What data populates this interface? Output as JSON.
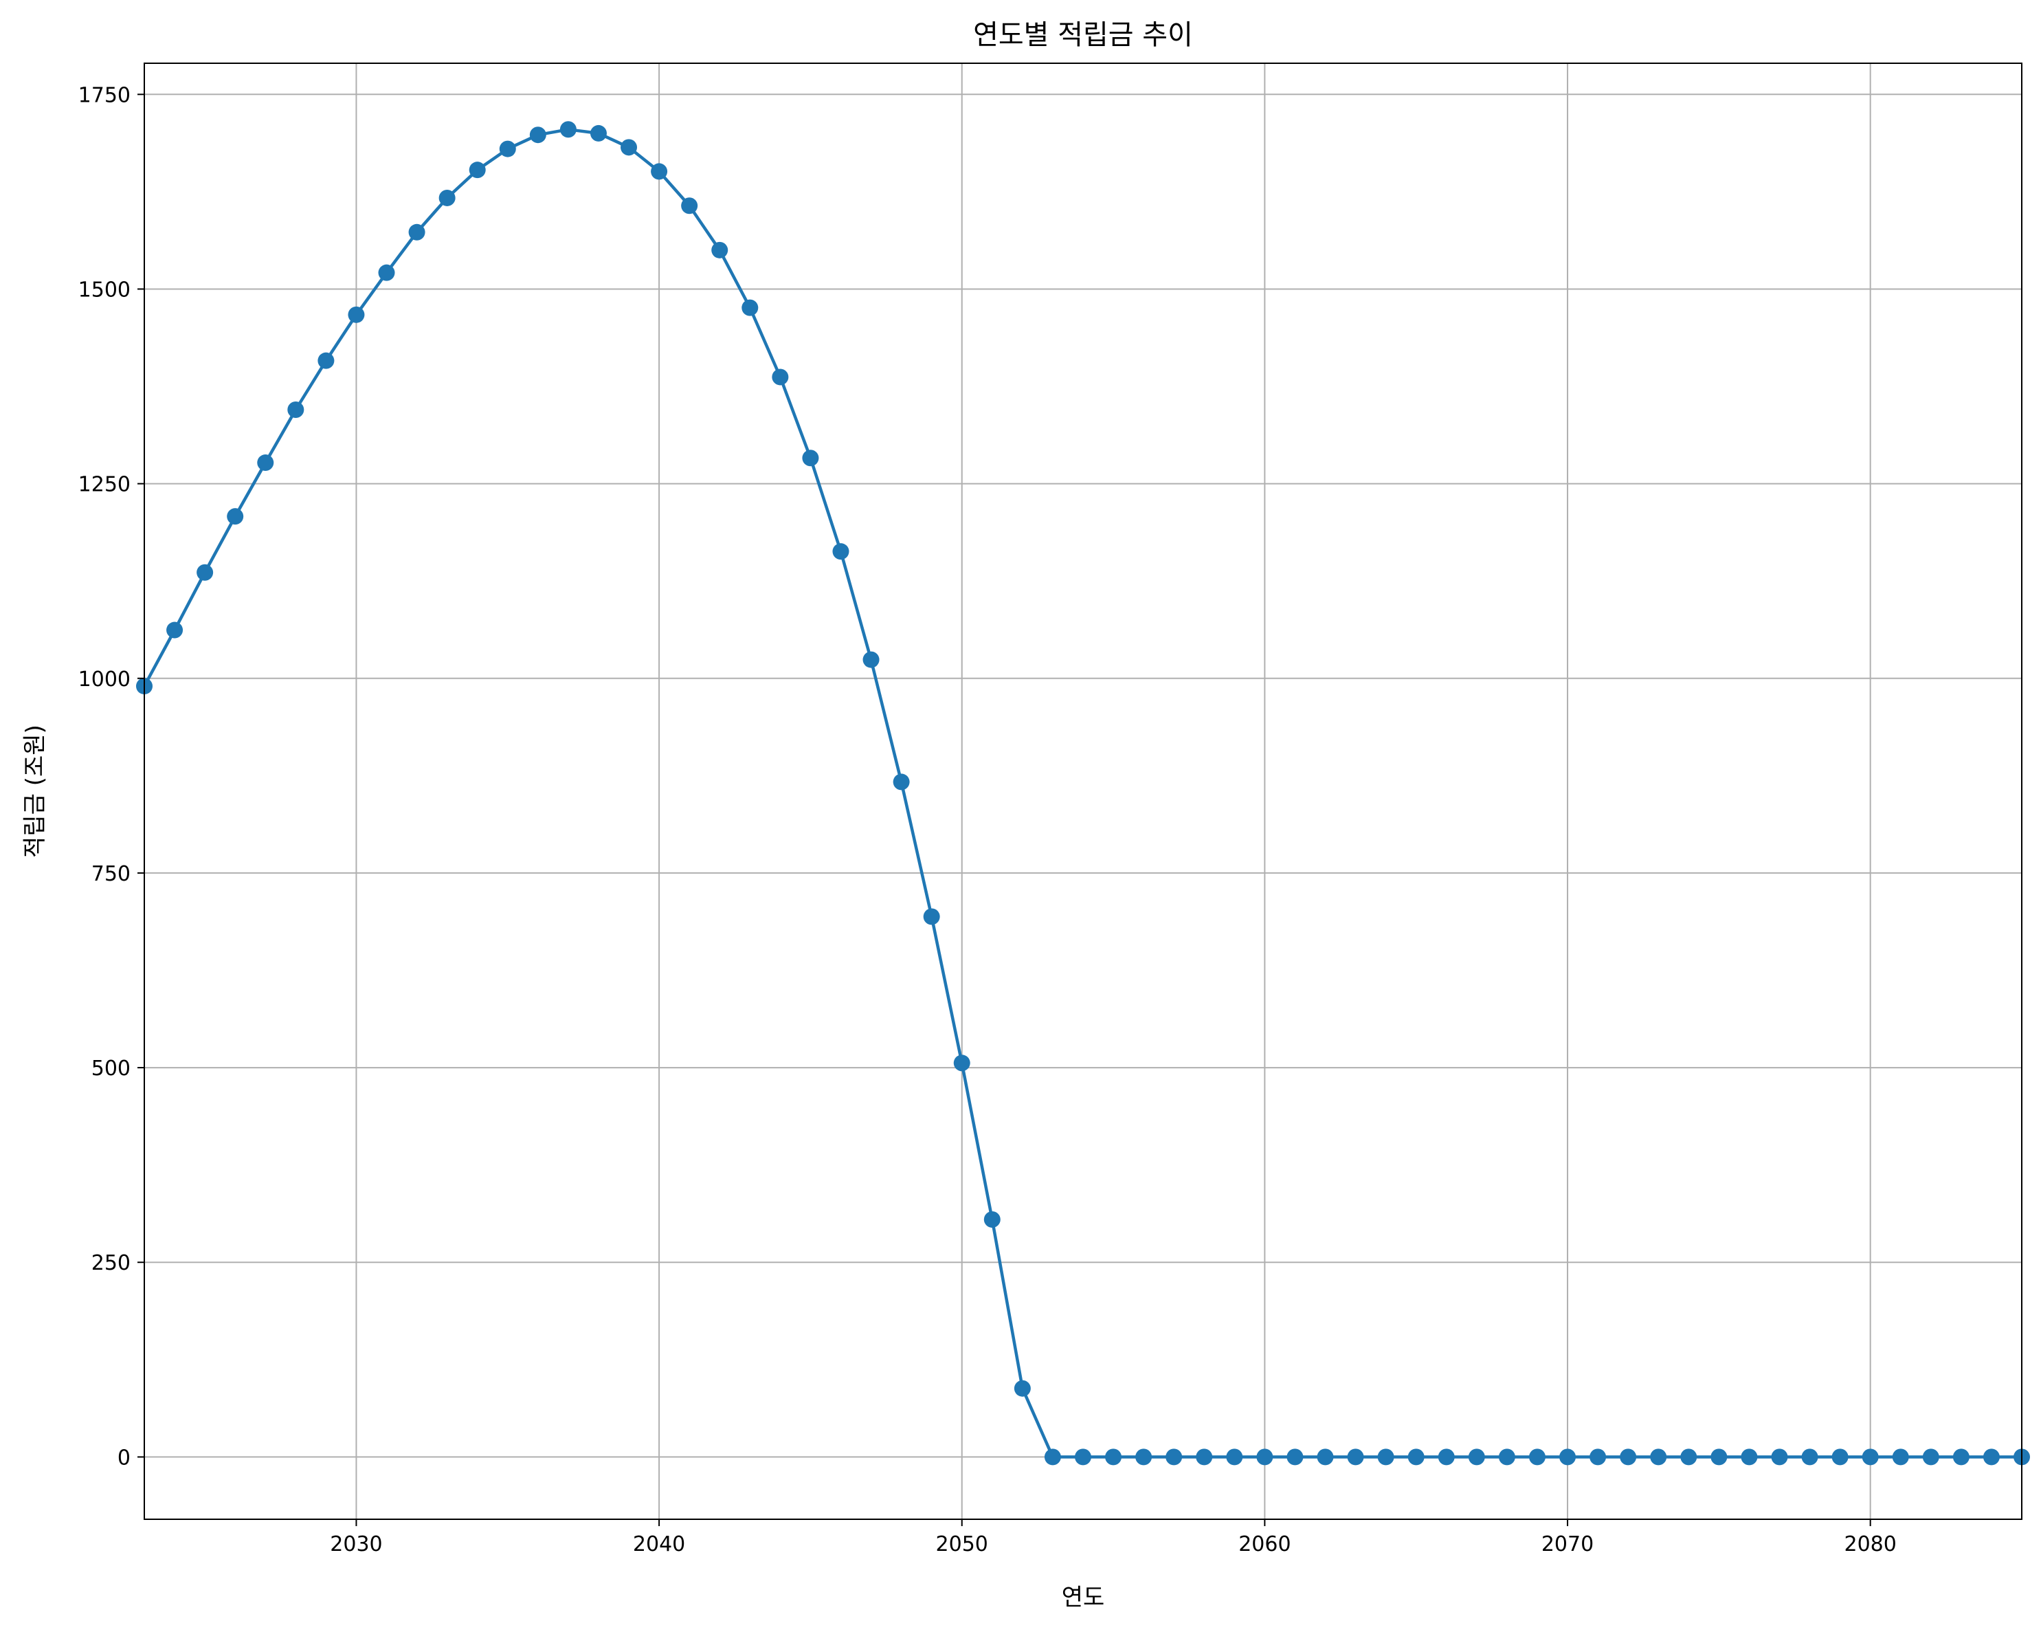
{
  "chart_data": {
    "type": "line",
    "title": "연도별 적립금 추이",
    "xlabel": "연도",
    "ylabel": "적립금 (조원)",
    "xlim": [
      2023,
      2085
    ],
    "ylim": [
      -80,
      1790
    ],
    "grid": true,
    "marker": "circle",
    "color": "#1f77b4",
    "x_ticks": [
      2030,
      2040,
      2050,
      2060,
      2070,
      2080
    ],
    "y_ticks": [
      0,
      250,
      500,
      750,
      1000,
      1250,
      1500,
      1750
    ],
    "series": [
      {
        "name": "적립금",
        "x": [
          2023,
          2024,
          2025,
          2026,
          2027,
          2028,
          2029,
          2030,
          2031,
          2032,
          2033,
          2034,
          2035,
          2036,
          2037,
          2038,
          2039,
          2040,
          2041,
          2042,
          2043,
          2044,
          2045,
          2046,
          2047,
          2048,
          2049,
          2050,
          2051,
          2052,
          2053,
          2054,
          2055,
          2056,
          2057,
          2058,
          2059,
          2060,
          2061,
          2062,
          2063,
          2064,
          2065,
          2066,
          2067,
          2068,
          2069,
          2070,
          2071,
          2072,
          2073,
          2074,
          2075,
          2076,
          2077,
          2078,
          2079,
          2080,
          2081,
          2082,
          2083,
          2084,
          2085
        ],
        "values": [
          990,
          1062,
          1136,
          1208,
          1277,
          1345,
          1408,
          1467,
          1521,
          1573,
          1617,
          1653,
          1680,
          1698,
          1705,
          1700,
          1682,
          1651,
          1607,
          1550,
          1476,
          1387,
          1283,
          1163,
          1024,
          867,
          694,
          506,
          305,
          88,
          0,
          0,
          0,
          0,
          0,
          0,
          0,
          0,
          0,
          0,
          0,
          0,
          0,
          0,
          0,
          0,
          0,
          0,
          0,
          0,
          0,
          0,
          0,
          0,
          0,
          0,
          0,
          0,
          0,
          0,
          0,
          0,
          0
        ]
      }
    ]
  }
}
